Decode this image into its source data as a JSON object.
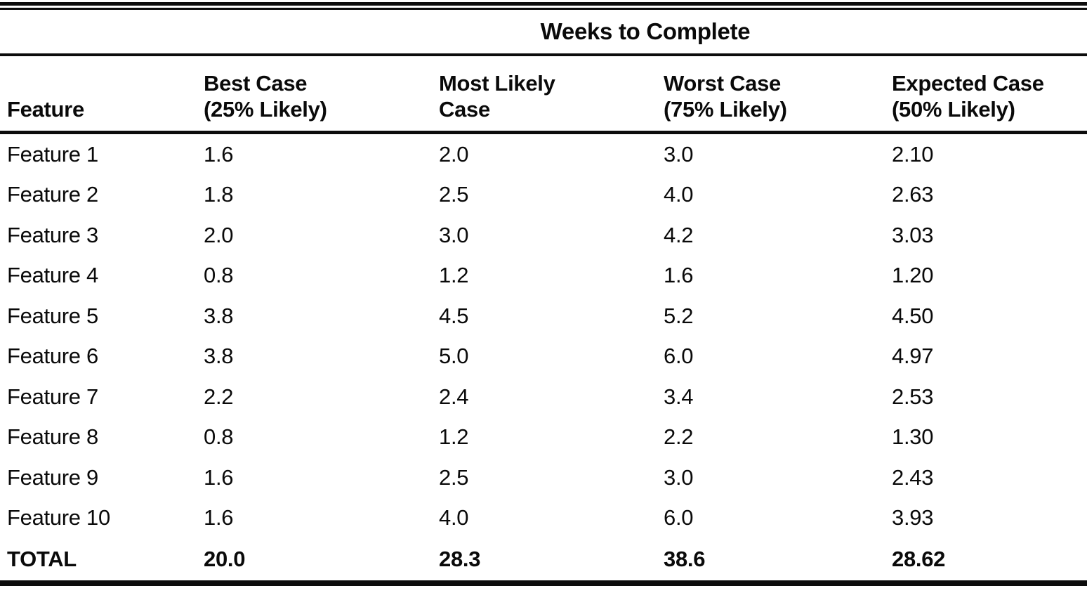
{
  "table": {
    "spanner": "Weeks to Complete",
    "columns": [
      {
        "line1": "",
        "line2": "Feature"
      },
      {
        "line1": "Best Case",
        "line2": "(25% Likely)"
      },
      {
        "line1": "Most Likely",
        "line2": "Case"
      },
      {
        "line1": "Worst Case",
        "line2": "(75% Likely)"
      },
      {
        "line1": "Expected Case",
        "line2": "(50% Likely)"
      }
    ],
    "rows": [
      {
        "feature": "Feature 1",
        "best": "1.6",
        "most_likely": "2.0",
        "worst": "3.0",
        "expected": "2.10"
      },
      {
        "feature": "Feature 2",
        "best": "1.8",
        "most_likely": "2.5",
        "worst": "4.0",
        "expected": "2.63"
      },
      {
        "feature": "Feature 3",
        "best": "2.0",
        "most_likely": "3.0",
        "worst": "4.2",
        "expected": "3.03"
      },
      {
        "feature": "Feature 4",
        "best": "0.8",
        "most_likely": "1.2",
        "worst": "1.6",
        "expected": "1.20"
      },
      {
        "feature": "Feature 5",
        "best": "3.8",
        "most_likely": "4.5",
        "worst": "5.2",
        "expected": "4.50"
      },
      {
        "feature": "Feature 6",
        "best": "3.8",
        "most_likely": "5.0",
        "worst": "6.0",
        "expected": "4.97"
      },
      {
        "feature": "Feature 7",
        "best": "2.2",
        "most_likely": "2.4",
        "worst": "3.4",
        "expected": "2.53"
      },
      {
        "feature": "Feature 8",
        "best": "0.8",
        "most_likely": "1.2",
        "worst": "2.2",
        "expected": "1.30"
      },
      {
        "feature": "Feature 9",
        "best": "1.6",
        "most_likely": "2.5",
        "worst": "3.0",
        "expected": "2.43"
      },
      {
        "feature": "Feature 10",
        "best": "1.6",
        "most_likely": "4.0",
        "worst": "6.0",
        "expected": "3.93"
      }
    ],
    "total": {
      "feature": "TOTAL",
      "best": "20.0",
      "most_likely": "28.3",
      "worst": "38.6",
      "expected": "28.62"
    }
  },
  "colors": {
    "background": "#ffffff",
    "text": "#0a0a0a",
    "rule": "#0c0c0c"
  }
}
